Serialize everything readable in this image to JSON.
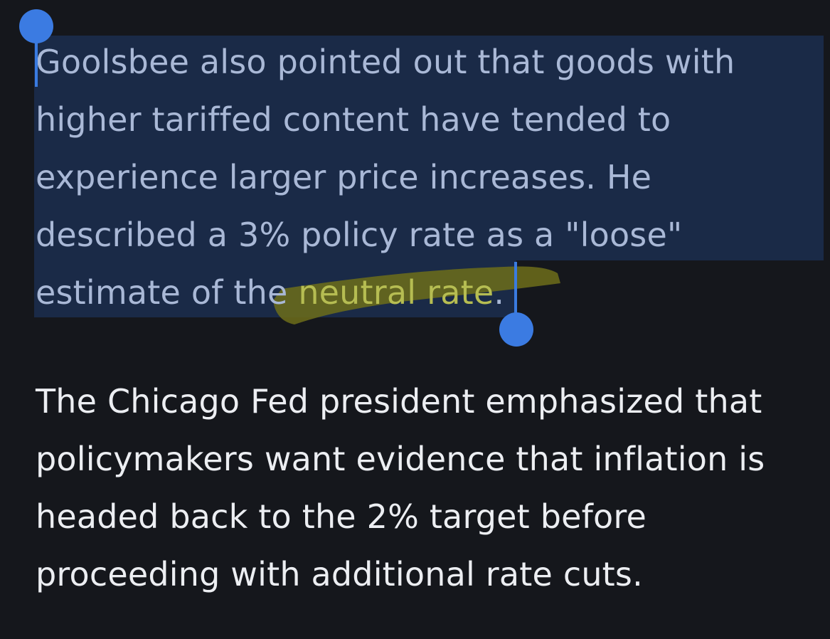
{
  "article": {
    "paragraphs": [
      {
        "lines": [
          "Goolsbee also pointed out that goods with",
          "higher tariffed content have tended to",
          "experience larger price increases. He",
          "described a 3% policy rate as a \"loose\""
        ],
        "last_line_prefix": "estimate of the ",
        "last_line_highlight": "neutral rate",
        "last_line_suffix": "."
      },
      {
        "lines": [
          "The Chicago Fed president emphasized that",
          "policymakers want evidence that inflation is",
          "headed back to the 2% target before",
          "proceeding with additional rate cuts."
        ]
      }
    ]
  },
  "selection": {
    "color": "#1a2a47",
    "handle_color": "#3b7be2",
    "start_handle_icon": "selection-start-handle-icon",
    "end_handle_icon": "selection-end-handle-icon"
  },
  "highlight": {
    "color": "#8a8a1e"
  }
}
